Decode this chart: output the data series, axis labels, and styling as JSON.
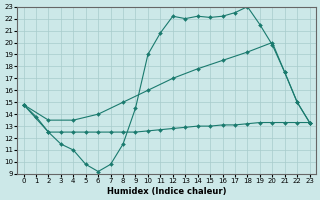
{
  "xlabel": "Humidex (Indice chaleur)",
  "xlim": [
    -0.5,
    23.5
  ],
  "ylim": [
    9,
    23
  ],
  "yticks": [
    9,
    10,
    11,
    12,
    13,
    14,
    15,
    16,
    17,
    18,
    19,
    20,
    21,
    22,
    23
  ],
  "xticks": [
    0,
    1,
    2,
    3,
    4,
    5,
    6,
    7,
    8,
    9,
    10,
    11,
    12,
    13,
    14,
    15,
    16,
    17,
    18,
    19,
    20,
    21,
    22,
    23
  ],
  "bg_color": "#cce8e8",
  "grid_color": "#a8cccc",
  "line_color": "#1a7a6e",
  "line1_x": [
    0,
    1,
    2,
    3,
    4,
    5,
    6,
    7,
    8,
    9,
    10,
    11,
    12,
    13,
    14,
    15,
    16,
    17,
    18,
    19,
    20,
    21,
    22,
    23
  ],
  "line1_y": [
    14.8,
    13.8,
    12.5,
    11.5,
    11.0,
    9.8,
    9.2,
    9.8,
    11.5,
    14.5,
    19.0,
    20.8,
    22.2,
    22.0,
    22.2,
    22.1,
    22.2,
    22.5,
    23.0,
    21.5,
    19.8,
    17.5,
    15.0,
    13.3
  ],
  "line2_x": [
    0,
    2,
    4,
    6,
    8,
    10,
    12,
    14,
    16,
    18,
    20,
    21,
    22,
    23
  ],
  "line2_y": [
    14.8,
    13.5,
    13.5,
    14.0,
    15.0,
    16.0,
    17.0,
    17.8,
    18.5,
    19.2,
    20.0,
    17.5,
    15.0,
    13.3
  ],
  "line3_x": [
    0,
    2,
    3,
    4,
    5,
    6,
    7,
    8,
    9,
    10,
    11,
    12,
    13,
    14,
    15,
    16,
    17,
    18,
    19,
    20,
    21,
    22,
    23
  ],
  "line3_y": [
    14.8,
    12.5,
    12.5,
    12.5,
    12.5,
    12.5,
    12.5,
    12.5,
    12.5,
    12.6,
    12.7,
    12.8,
    12.9,
    13.0,
    13.0,
    13.1,
    13.1,
    13.2,
    13.3,
    13.3,
    13.3,
    13.3,
    13.3
  ]
}
